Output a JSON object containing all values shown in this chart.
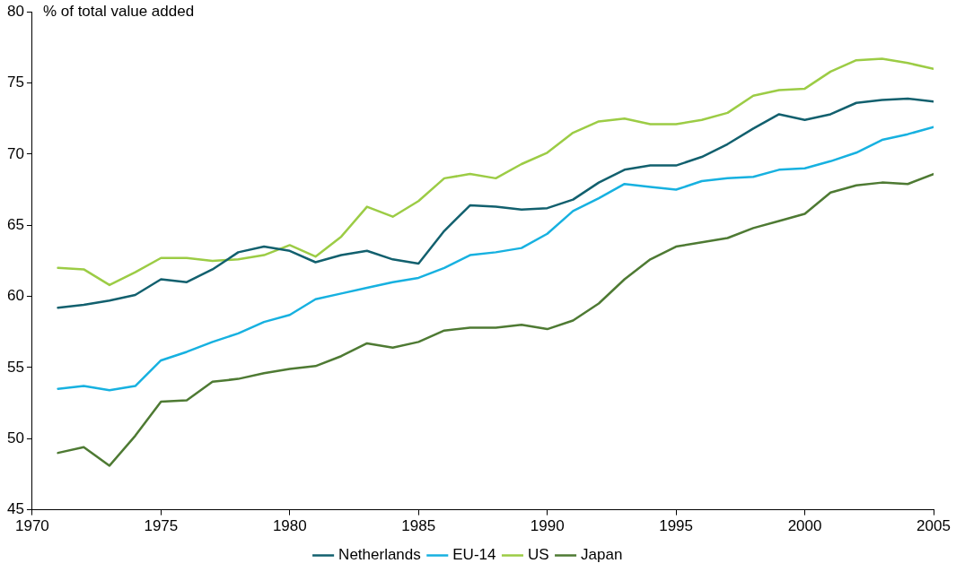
{
  "chart_data": {
    "type": "line",
    "ylabel": "% of total value added",
    "x": [
      1971,
      1972,
      1973,
      1974,
      1975,
      1976,
      1977,
      1978,
      1979,
      1980,
      1981,
      1982,
      1983,
      1984,
      1985,
      1986,
      1987,
      1988,
      1989,
      1990,
      1991,
      1992,
      1993,
      1994,
      1995,
      1996,
      1997,
      1998,
      1999,
      2000,
      2001,
      2002,
      2003,
      2004,
      2005
    ],
    "series": [
      {
        "name": "Netherlands",
        "color": "#12606e",
        "values": [
          59.2,
          59.4,
          59.7,
          60.1,
          61.2,
          61.0,
          61.9,
          63.1,
          63.5,
          63.2,
          62.4,
          62.9,
          63.2,
          62.6,
          62.3,
          64.6,
          66.4,
          66.3,
          66.1,
          66.2,
          66.8,
          68.0,
          68.9,
          69.2,
          69.2,
          69.8,
          70.7,
          71.8,
          72.8,
          72.4,
          72.8,
          73.6,
          73.8,
          73.9,
          73.7
        ]
      },
      {
        "name": "EU-14",
        "color": "#17b1e0",
        "values": [
          53.5,
          53.7,
          53.4,
          53.7,
          55.5,
          56.1,
          56.8,
          57.4,
          58.2,
          58.7,
          59.8,
          60.2,
          60.6,
          61.0,
          61.3,
          62.0,
          62.9,
          63.1,
          63.4,
          64.4,
          66.0,
          66.9,
          67.9,
          67.7,
          67.5,
          68.1,
          68.3,
          68.4,
          68.9,
          69.0,
          69.5,
          70.1,
          71.0,
          71.4,
          71.9
        ]
      },
      {
        "name": "US",
        "color": "#9ccc45",
        "values": [
          62.0,
          61.9,
          60.8,
          61.7,
          62.7,
          62.7,
          62.5,
          62.6,
          62.9,
          63.6,
          62.8,
          64.2,
          66.3,
          65.6,
          66.7,
          68.3,
          68.6,
          68.3,
          69.3,
          70.1,
          71.5,
          72.3,
          72.5,
          72.1,
          72.1,
          72.4,
          72.9,
          74.1,
          74.5,
          74.6,
          75.8,
          76.6,
          76.7,
          76.4,
          76.0
        ]
      },
      {
        "name": "Japan",
        "color": "#4e7a33",
        "values": [
          49.0,
          49.4,
          48.1,
          50.2,
          52.6,
          52.7,
          54.0,
          54.2,
          54.6,
          54.9,
          55.1,
          55.8,
          56.7,
          56.4,
          56.8,
          57.6,
          57.8,
          57.8,
          58.0,
          57.7,
          58.3,
          59.5,
          61.2,
          62.6,
          63.5,
          63.8,
          64.1,
          64.8,
          65.3,
          65.8,
          67.3,
          67.8,
          68.0,
          67.9,
          68.6
        ]
      }
    ],
    "xlim": [
      1970,
      2005
    ],
    "xticks": [
      1970,
      1975,
      1980,
      1985,
      1990,
      1995,
      2000,
      2005
    ],
    "ylim": [
      45,
      80
    ],
    "yticks": [
      45,
      50,
      55,
      60,
      65,
      70,
      75,
      80
    ],
    "grid": false,
    "legend": "bottom",
    "marker": "none",
    "line_style": "solid"
  }
}
